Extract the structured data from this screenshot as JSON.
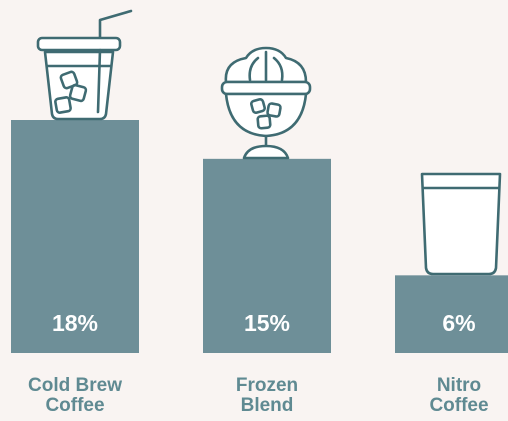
{
  "chart_data": {
    "type": "bar",
    "categories": [
      "Cold Brew Coffee",
      "Frozen Blend",
      "Nitro Coffee"
    ],
    "category_lines": [
      [
        "Cold Brew",
        "Coffee"
      ],
      [
        "Frozen",
        "Blend"
      ],
      [
        "Nitro",
        "Coffee"
      ]
    ],
    "values": [
      18,
      15,
      6
    ],
    "value_labels": [
      "18%",
      "15%",
      "6%"
    ],
    "ylim": [
      0,
      18
    ],
    "grid": false,
    "legend": "none",
    "bar_color": "#6e8f98",
    "label_color": "#5f8a92",
    "icon_color": "#3f6b72",
    "background": "#f9f4f2",
    "icons": [
      "iced-coffee-cup-icon",
      "frozen-dessert-cup-icon",
      "glass-icon"
    ]
  }
}
